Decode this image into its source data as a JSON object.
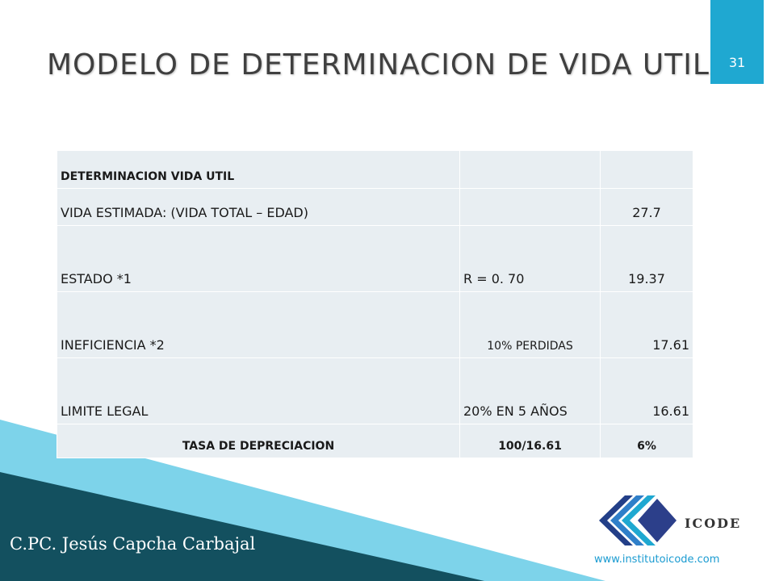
{
  "slide": {
    "title": "MODELO DE DETERMINACION DE VIDA UTIL",
    "page_number": "31"
  },
  "table": {
    "rows": [
      {
        "label": "DETERMINACION VIDA UTIL",
        "middle": "",
        "value": ""
      },
      {
        "label": "VIDA ESTIMADA:  (VIDA TOTAL – EDAD)",
        "middle": "",
        "value": "27.7"
      },
      {
        "label": "ESTADO  *1",
        "middle": "R = 0. 70",
        "value": "19.37"
      },
      {
        "label": "INEFICIENCIA *2",
        "middle": "10% PERDIDAS",
        "value": "17.61"
      },
      {
        "label": "LIMITE LEGAL",
        "middle": "20% EN 5 AÑOS",
        "value": "16.61"
      },
      {
        "label": "TASA DE DEPRECIACION",
        "middle": "100/16.61",
        "value": "6%"
      }
    ]
  },
  "footer": {
    "author": "C.PC. Jesús Capcha Carbajal",
    "url": "www.institutoicode.com",
    "logo_text": "ICODE"
  },
  "colors": {
    "accent_blue": "#1fa8d1",
    "dark_teal": "#13505f",
    "light_cyan": "#7dd3ea",
    "table_fill": "#e8eef2"
  }
}
